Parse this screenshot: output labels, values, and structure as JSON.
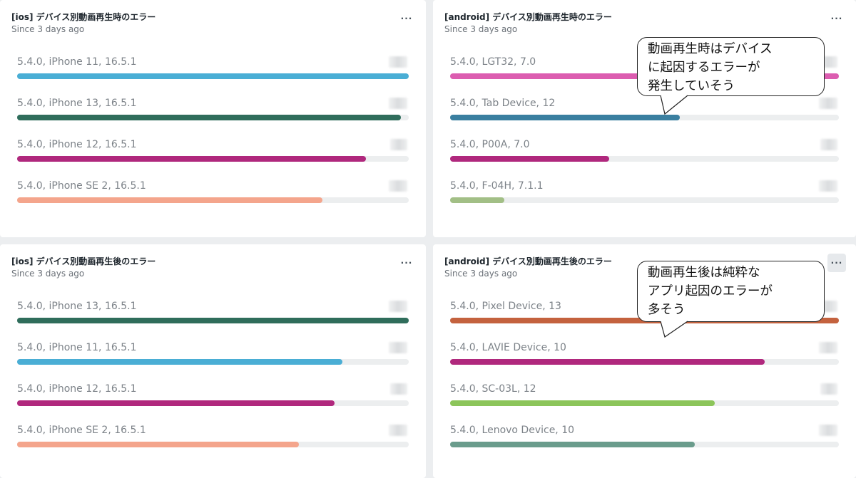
{
  "panels": [
    {
      "title": "[ios] デバイス別動画再生時のエラー",
      "subtitle": "Since 3 days ago",
      "menu_label": "···",
      "rows": [
        {
          "label": "5.4.0, iPhone 11, 16.5.1",
          "fraction": 1.0,
          "color": "#4aaed5"
        },
        {
          "label": "5.4.0, iPhone 13, 16.5.1",
          "fraction": 0.98,
          "color": "#2f6d5b"
        },
        {
          "label": "5.4.0, iPhone 12, 16.5.1",
          "fraction": 0.89,
          "color": "#b0287d"
        },
        {
          "label": "5.4.0, iPhone SE 2, 16.5.1",
          "fraction": 0.78,
          "color": "#f4a58c"
        }
      ]
    },
    {
      "title": "[android] デバイス別動画再生時のエラー",
      "subtitle": "Since 3 days ago",
      "menu_label": "···",
      "rows": [
        {
          "label": "5.4.0, LGT32, 7.0",
          "fraction": 1.0,
          "color": "#dc5db0"
        },
        {
          "label": "5.4.0, Tab Device, 12",
          "fraction": 0.59,
          "color": "#3a7fa0"
        },
        {
          "label": "5.4.0, P00A, 7.0",
          "fraction": 0.41,
          "color": "#b0287d"
        },
        {
          "label": "5.4.0, F-04H, 7.1.1",
          "fraction": 0.14,
          "color": "#a2bf86"
        }
      ]
    },
    {
      "title": "[ios] デバイス別動画再生後のエラー",
      "subtitle": "Since 3 days ago",
      "menu_label": "···",
      "rows": [
        {
          "label": "5.4.0, iPhone 13, 16.5.1",
          "fraction": 1.0,
          "color": "#2f6d5b"
        },
        {
          "label": "5.4.0, iPhone 11, 16.5.1",
          "fraction": 0.83,
          "color": "#4aaed5"
        },
        {
          "label": "5.4.0, iPhone 12, 16.5.1",
          "fraction": 0.81,
          "color": "#b0287d"
        },
        {
          "label": "5.4.0, iPhone SE 2, 16.5.1",
          "fraction": 0.72,
          "color": "#f4a58c"
        }
      ]
    },
    {
      "title": "[android] デバイス別動画再生後のエラー",
      "subtitle": "Since 3 days ago",
      "menu_label": "···",
      "rows": [
        {
          "label": "5.4.0, Pixel Device, 13",
          "fraction": 1.0,
          "color": "#c4623e"
        },
        {
          "label": "5.4.0, LAVIE Device, 10",
          "fraction": 0.81,
          "color": "#b0287d"
        },
        {
          "label": "5.4.0, SC-03L, 12",
          "fraction": 0.68,
          "color": "#8cc55a"
        },
        {
          "label": "5.4.0, Lenovo Device, 10",
          "fraction": 0.63,
          "color": "#6a9c8c"
        }
      ]
    }
  ],
  "callouts": [
    {
      "lines": [
        "動画再生時はデバイス",
        "に起因するエラーが",
        "発生していそう"
      ]
    },
    {
      "lines": [
        "動画再生後は純粋な",
        "アプリ起因のエラーが",
        "多そう"
      ]
    }
  ]
}
